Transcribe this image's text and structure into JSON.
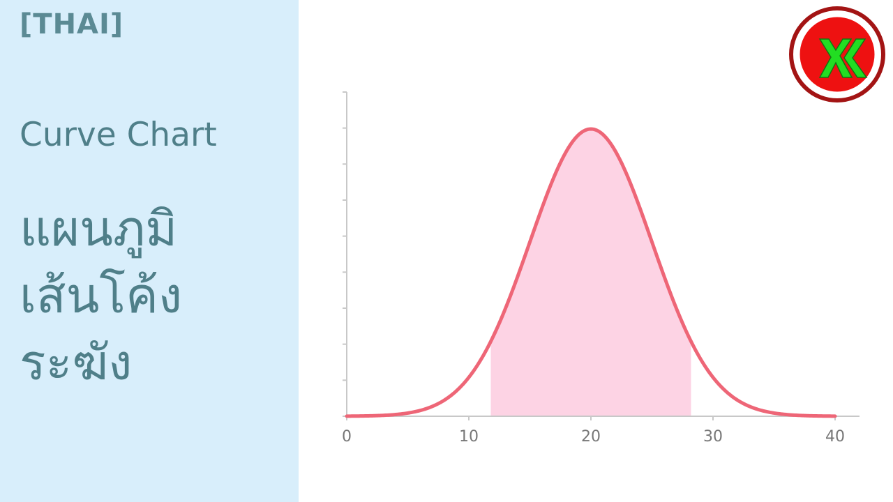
{
  "header": {
    "lang_tag": "[THAI]",
    "title_en": "Curve Chart",
    "title_th_lines": [
      "แผนภูมิ",
      "เส้นโค้ง",
      "ระฆัง"
    ]
  },
  "colors": {
    "panel_bg": "#d8eefb",
    "text": "#4f7f89",
    "curve": "#ee6677",
    "fill": "#fdd3e4",
    "axis": "#c8c8c8",
    "logo_ring": "#a31414",
    "logo_red": "#ee1111",
    "logo_green": "#22dd22"
  },
  "logo": {
    "icon": "xx-logo-icon"
  },
  "chart_data": {
    "type": "line",
    "title": "",
    "xlabel": "",
    "ylabel": "",
    "xlim": [
      0,
      40
    ],
    "x_ticks": [
      0,
      10,
      20,
      30,
      40
    ],
    "y_tick_count": 10,
    "curve": {
      "shape": "normal",
      "mean": 20,
      "sd": 5
    },
    "shaded_region": [
      11.8,
      28.2
    ],
    "grid": false,
    "legend": "none"
  }
}
